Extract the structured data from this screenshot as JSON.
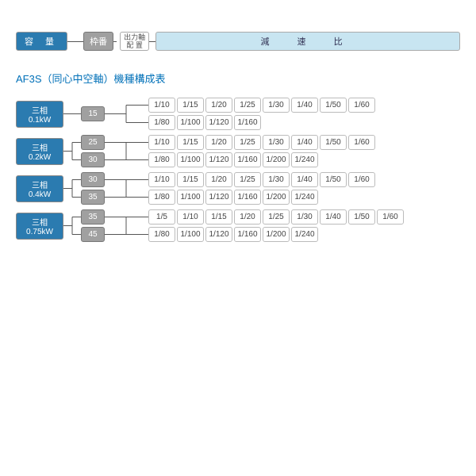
{
  "legend": {
    "capacity": "容 量",
    "frame": "枠番",
    "shaft_line1": "出力軸",
    "shaft_line2": "配 置",
    "ratio": "減 速 比"
  },
  "title": "AF3S（同心中空軸）機種構成表",
  "colors": {
    "capacity_bg": "#2b7bb0",
    "frame_bg": "#a0a0a0",
    "ratio_header_bg": "#c8e5f1",
    "title_color": "#0070b8",
    "ratio_border": "#bbbbbb"
  },
  "groups": [
    {
      "capacity": "三相0.1kW",
      "frames": [
        "15"
      ],
      "ratio_rows": [
        [
          "1/10",
          "1/15",
          "1/20",
          "1/25",
          "1/30",
          "1/40",
          "1/50",
          "1/60"
        ],
        [
          "1/80",
          "1/100",
          "1/120",
          "1/160"
        ]
      ]
    },
    {
      "capacity": "三相0.2kW",
      "frames": [
        "25",
        "30"
      ],
      "ratio_rows": [
        [
          "1/10",
          "1/15",
          "1/20",
          "1/25",
          "1/30",
          "1/40",
          "1/50",
          "1/60"
        ],
        [
          "1/80",
          "1/100",
          "1/120",
          "1/160",
          "1/200",
          "1/240"
        ]
      ]
    },
    {
      "capacity": "三相0.4kW",
      "frames": [
        "30",
        "35"
      ],
      "ratio_rows": [
        [
          "1/10",
          "1/15",
          "1/20",
          "1/25",
          "1/30",
          "1/40",
          "1/50",
          "1/60"
        ],
        [
          "1/80",
          "1/100",
          "1/120",
          "1/160",
          "1/200",
          "1/240"
        ]
      ]
    },
    {
      "capacity": "三相0.75kW",
      "frames": [
        "35",
        "45"
      ],
      "ratio_rows": [
        [
          "1/5",
          "1/10",
          "1/15",
          "1/20",
          "1/25",
          "1/30",
          "1/40",
          "1/50",
          "1/60"
        ],
        [
          "1/80",
          "1/100",
          "1/120",
          "1/160",
          "1/200",
          "1/240"
        ]
      ]
    }
  ]
}
